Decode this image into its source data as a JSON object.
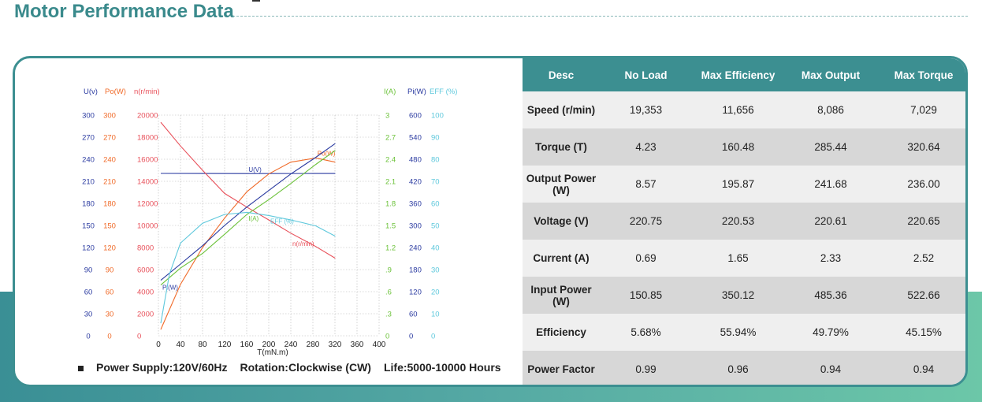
{
  "page": {
    "title": "Motor Performance Data"
  },
  "table": {
    "headers": [
      "Desc",
      "No Load",
      "Max Efficiency",
      "Max Output",
      "Max Torque"
    ],
    "rows": [
      [
        "Speed (r/min)",
        "19,353",
        "11,656",
        "8,086",
        "7,029"
      ],
      [
        "Torque (T)",
        "4.23",
        "160.48",
        "285.44",
        "320.64"
      ],
      [
        "Output Power (W)",
        "8.57",
        "195.87",
        "241.68",
        "236.00"
      ],
      [
        "Voltage (V)",
        "220.75",
        "220.53",
        "220.61",
        "220.65"
      ],
      [
        "Current (A)",
        "0.69",
        "1.65",
        "2.33",
        "2.52"
      ],
      [
        "Input Power (W)",
        "150.85",
        "350.12",
        "485.36",
        "522.66"
      ],
      [
        "Efficiency",
        "5.68%",
        "55.94%",
        "49.79%",
        "45.15%"
      ],
      [
        "Power Factor",
        "0.99",
        "0.96",
        "0.94",
        "0.94"
      ]
    ]
  },
  "footer": {
    "supply": "Power Supply:120V/60Hz",
    "rotation": "Rotation:Clockwise (CW)",
    "life": "Life:5000-10000 Hours"
  },
  "colors": {
    "accent": "#3c8f91",
    "voltage": "#2a3aa0",
    "power_out": "#f06a28",
    "speed": "#e8505a",
    "current": "#6cc23a",
    "power_in": "#2a3aa0",
    "efficiency": "#5ec8dc"
  },
  "chart_data": {
    "type": "line",
    "xlabel": "T(mN.m)",
    "x_ticks": [
      0,
      40,
      80,
      120,
      160,
      200,
      240,
      280,
      320,
      360,
      400
    ],
    "xlim": [
      0,
      400
    ],
    "left_axes": [
      {
        "label": "U(v)",
        "ticks": [
          0,
          30,
          60,
          90,
          120,
          150,
          180,
          210,
          240,
          270,
          300
        ],
        "color": "#2a3aa0"
      },
      {
        "label": "Po(W)",
        "ticks": [
          0,
          30,
          60,
          90,
          120,
          150,
          180,
          210,
          240,
          270,
          300
        ],
        "color": "#f06a28"
      },
      {
        "label": "n(r/min)",
        "ticks": [
          0,
          2000,
          4000,
          6000,
          8000,
          10000,
          12000,
          14000,
          16000,
          18000,
          20000
        ],
        "color": "#e8505a"
      }
    ],
    "right_axes": [
      {
        "label": "I(A)",
        "ticks": [
          "0",
          ".3",
          ".6",
          ".9",
          "1.2",
          "1.5",
          "1.8",
          "2.1",
          "2.4",
          "2.7",
          "3"
        ],
        "color": "#6cc23a"
      },
      {
        "label": "Pi(W)",
        "ticks": [
          0,
          60,
          120,
          180,
          240,
          300,
          360,
          420,
          480,
          540,
          600
        ],
        "color": "#2a3aa0"
      },
      {
        "label": "EFF (%)",
        "ticks": [
          0,
          10,
          20,
          30,
          40,
          50,
          60,
          70,
          80,
          90,
          100
        ],
        "color": "#5ec8dc"
      }
    ],
    "series": [
      {
        "name": "U(V)",
        "axis": "U(v)",
        "color": "#2a3aa0",
        "x": [
          4.23,
          160.48,
          285.44,
          320.64
        ],
        "y": [
          220.75,
          220.53,
          220.61,
          220.65
        ]
      },
      {
        "name": "Po(W)",
        "axis": "Po(W)",
        "color": "#f06a28",
        "x": [
          4.23,
          40,
          80,
          120,
          160.48,
          200,
          240,
          285.44,
          320.64
        ],
        "y": [
          8.57,
          70,
          120,
          160,
          195.87,
          220,
          236,
          241.68,
          236.0
        ]
      },
      {
        "name": "n(r/min)",
        "axis": "n(r/min)",
        "color": "#e8505a",
        "x": [
          4.23,
          40,
          80,
          120,
          160.48,
          200,
          240,
          285.44,
          320.64
        ],
        "y": [
          19353,
          17200,
          15000,
          12900,
          11656,
          10500,
          9300,
          8086,
          7029
        ]
      },
      {
        "name": "I(A)",
        "axis": "I(A)",
        "color": "#6cc23a",
        "x": [
          4.23,
          40,
          80,
          120,
          160.48,
          200,
          240,
          285.44,
          320.64
        ],
        "y": [
          0.69,
          0.92,
          1.12,
          1.38,
          1.65,
          1.85,
          2.07,
          2.33,
          2.52
        ]
      },
      {
        "name": "Pi(W)",
        "axis": "Pi(W)",
        "color": "#2a3aa0",
        "x": [
          4.23,
          40,
          80,
          120,
          160.48,
          200,
          240,
          285.44,
          320.64
        ],
        "y": [
          150.85,
          195,
          245,
          300,
          350.12,
          395,
          440,
          485.36,
          522.66
        ]
      },
      {
        "name": "EFF (%)",
        "axis": "EFF (%)",
        "color": "#5ec8dc",
        "x": [
          4.23,
          20,
          40,
          80,
          120,
          160.48,
          200,
          240,
          285.44,
          320.64
        ],
        "y": [
          5.68,
          28,
          42,
          51,
          55,
          55.94,
          54.5,
          52.5,
          49.79,
          45.15
        ]
      }
    ],
    "series_labels": [
      "U(V)",
      "Po(W)",
      "n(r/min)",
      "I(A)",
      "Pi(W)",
      "EFF (%)"
    ]
  }
}
